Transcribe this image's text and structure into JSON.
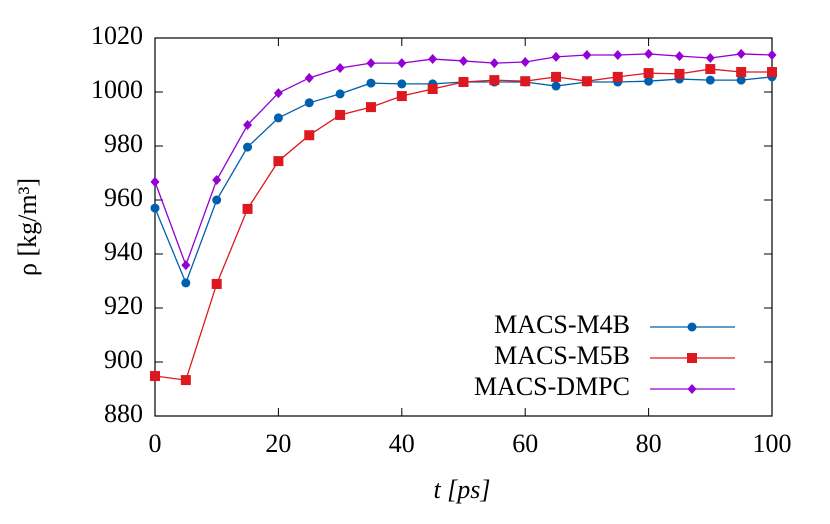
{
  "chart_data": {
    "type": "line",
    "x_label": "t [ps]",
    "y_label": "ρ [kg/m³]",
    "x": [
      0,
      5,
      10,
      15,
      20,
      25,
      30,
      35,
      40,
      45,
      50,
      55,
      60,
      65,
      70,
      75,
      80,
      85,
      90,
      95,
      100
    ],
    "series": [
      {
        "name": "MACS-M4B",
        "color": "#0060ad",
        "marker": "circle",
        "values": [
          957,
          929.3,
          960,
          979.6,
          990.4,
          996,
          999.3,
          1003.3,
          1003,
          1003,
          1003.7,
          1003.7,
          1003.7,
          1002.2,
          1003.7,
          1003.7,
          1004,
          1004.8,
          1004.4,
          1004.4,
          1005.6
        ]
      },
      {
        "name": "MACS-M5B",
        "color": "#dd181f",
        "marker": "square",
        "values": [
          894.8,
          893.3,
          928.9,
          956.7,
          974.4,
          984,
          991.5,
          994.4,
          998.5,
          1001.1,
          1003.7,
          1004.4,
          1004,
          1005.6,
          1004,
          1005.6,
          1007,
          1006.7,
          1008.5,
          1007.4,
          1007.4
        ]
      },
      {
        "name": "MACS-DMPC",
        "color": "#9400d3",
        "marker": "diamond",
        "values": [
          966.7,
          935.9,
          967.4,
          987.8,
          999.6,
          1005.2,
          1008.9,
          1010.7,
          1010.7,
          1012.2,
          1011.5,
          1010.7,
          1011.1,
          1013,
          1013.7,
          1013.7,
          1014.1,
          1013.3,
          1012.6,
          1014.1,
          1013.7
        ]
      }
    ],
    "xlim": [
      0,
      100
    ],
    "xticks": [
      0,
      20,
      40,
      60,
      80,
      100
    ],
    "ylim": [
      880,
      1020
    ],
    "yticks": [
      880,
      900,
      920,
      940,
      960,
      980,
      1000,
      1020
    ],
    "legend": "bottom-right"
  }
}
